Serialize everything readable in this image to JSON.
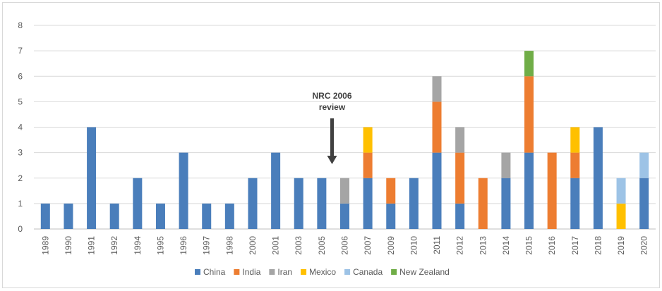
{
  "chart_data": {
    "type": "bar",
    "stacked": true,
    "categories": [
      "1989",
      "1990",
      "1991",
      "1992",
      "1994",
      "1995",
      "1996",
      "1997",
      "1998",
      "2000",
      "2001",
      "2003",
      "2005",
      "2006",
      "2007",
      "2009",
      "2010",
      "2011",
      "2012",
      "2013",
      "2014",
      "2015",
      "2016",
      "2017",
      "2018",
      "2019",
      "2020"
    ],
    "series": [
      {
        "name": "China",
        "color": "#4a7ebb",
        "values": [
          1,
          1,
          4,
          1,
          2,
          1,
          3,
          1,
          1,
          2,
          3,
          2,
          2,
          1,
          2,
          1,
          2,
          3,
          1,
          0,
          2,
          3,
          0,
          2,
          4,
          0,
          2
        ]
      },
      {
        "name": "India",
        "color": "#ed7d31",
        "values": [
          0,
          0,
          0,
          0,
          0,
          0,
          0,
          0,
          0,
          0,
          0,
          0,
          0,
          0,
          1,
          1,
          0,
          2,
          2,
          2,
          0,
          3,
          3,
          1,
          0,
          0,
          0
        ]
      },
      {
        "name": "Iran",
        "color": "#a5a5a5",
        "values": [
          0,
          0,
          0,
          0,
          0,
          0,
          0,
          0,
          0,
          0,
          0,
          0,
          0,
          1,
          0,
          0,
          0,
          1,
          1,
          0,
          1,
          0,
          0,
          0,
          0,
          0,
          0
        ]
      },
      {
        "name": "Mexico",
        "color": "#ffc000",
        "values": [
          0,
          0,
          0,
          0,
          0,
          0,
          0,
          0,
          0,
          0,
          0,
          0,
          0,
          0,
          1,
          0,
          0,
          0,
          0,
          0,
          0,
          0,
          0,
          1,
          0,
          1,
          0
        ]
      },
      {
        "name": "Canada",
        "color": "#9dc3e6",
        "values": [
          0,
          0,
          0,
          0,
          0,
          0,
          0,
          0,
          0,
          0,
          0,
          0,
          0,
          0,
          0,
          0,
          0,
          0,
          0,
          0,
          0,
          0,
          0,
          0,
          0,
          1,
          1
        ]
      },
      {
        "name": "New Zealand",
        "color": "#70ad47",
        "values": [
          0,
          0,
          0,
          0,
          0,
          0,
          0,
          0,
          0,
          0,
          0,
          0,
          0,
          0,
          0,
          0,
          0,
          0,
          0,
          0,
          0,
          1,
          0,
          0,
          0,
          0,
          0
        ]
      }
    ],
    "ylim": [
      0,
      8
    ],
    "yticks": [
      "0",
      "1",
      "2",
      "3",
      "4",
      "5",
      "6",
      "7",
      "8"
    ],
    "grid": true,
    "legend_position": "bottom",
    "annotation": {
      "line1": "NRC 2006",
      "line2": "review",
      "category": "2006"
    }
  }
}
